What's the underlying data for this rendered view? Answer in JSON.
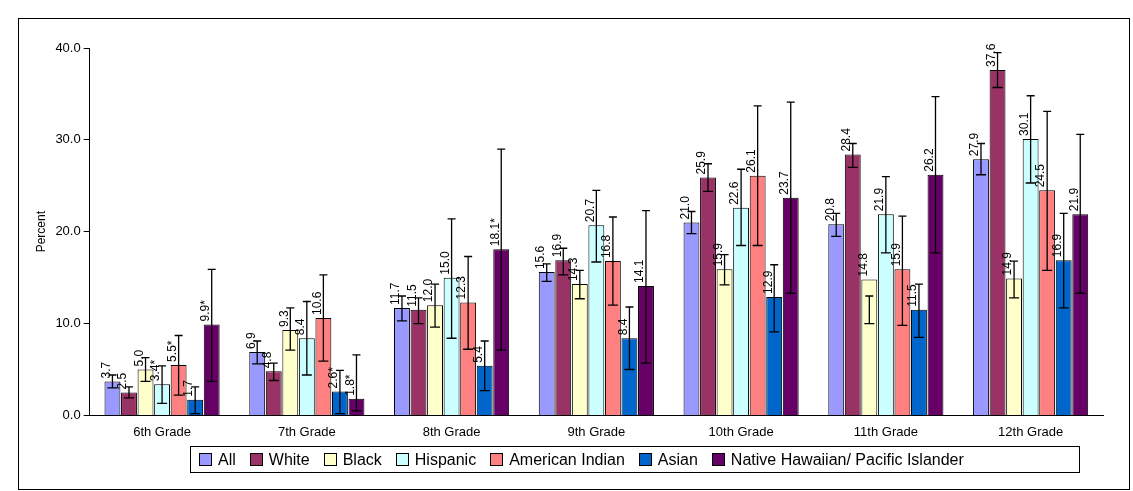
{
  "chart_data": {
    "type": "bar",
    "ylabel": "Percent",
    "categories": [
      "6th Grade",
      "7th Grade",
      "8th Grade",
      "9th Grade",
      "10th Grade",
      "11th Grade",
      "12th Grade"
    ],
    "ylim": [
      0,
      40
    ],
    "yticks": [
      {
        "value": 0,
        "label": "0.0"
      },
      {
        "value": 10,
        "label": "10.0"
      },
      {
        "value": 20,
        "label": "20.0"
      },
      {
        "value": 30,
        "label": "30.0"
      },
      {
        "value": 40,
        "label": "40.0"
      }
    ],
    "grid": false,
    "legend": "bottom",
    "data_labels": true,
    "series": [
      {
        "name": "All",
        "color": "#9999ff",
        "values": [
          3.7,
          6.9,
          11.7,
          15.6,
          21.0,
          20.8,
          27.9
        ],
        "errors": [
          [
            3.0,
            4.4
          ],
          [
            5.6,
            8.1
          ],
          [
            10.3,
            13.0
          ],
          [
            14.6,
            16.5
          ],
          [
            19.8,
            22.2
          ],
          [
            19.5,
            22.0
          ],
          [
            26.2,
            29.6
          ]
        ],
        "value_labels": [
          "3.7",
          "6.9",
          "11.7",
          "15.6",
          "21.0",
          "20.8",
          "27.9"
        ]
      },
      {
        "name": "White",
        "color": "#993366",
        "values": [
          2.5,
          4.8,
          11.5,
          16.9,
          25.9,
          28.4,
          37.6
        ],
        "errors": [
          [
            1.9,
            3.1
          ],
          [
            3.8,
            5.7
          ],
          [
            10.0,
            12.8
          ],
          [
            15.3,
            18.2
          ],
          [
            24.4,
            27.4
          ],
          [
            27.0,
            29.6
          ],
          [
            35.7,
            39.5
          ]
        ],
        "value_labels": [
          "2.5",
          "4.8",
          "11.5",
          "16.9",
          "25.9",
          "28.4",
          "37.6"
        ]
      },
      {
        "name": "Black",
        "color": "#ffffcc",
        "values": [
          5.0,
          9.3,
          12.0,
          14.3,
          15.9,
          14.8,
          14.9
        ],
        "errors": [
          [
            3.7,
            6.3
          ],
          [
            7.1,
            11.7
          ],
          [
            9.6,
            14.3
          ],
          [
            12.7,
            15.8
          ],
          [
            14.2,
            17.5
          ],
          [
            10.0,
            13.0
          ],
          [
            12.8,
            16.8
          ]
        ],
        "value_labels": [
          "5.0",
          "9.3",
          "12.0",
          "14.3",
          "15.9",
          "14.8",
          "14.9"
        ]
      },
      {
        "name": "Hispanic",
        "color": "#ccffff",
        "values": [
          3.4,
          8.4,
          15.0,
          20.7,
          22.6,
          21.9,
          30.1
        ],
        "errors": [
          [
            1.3,
            5.4
          ],
          [
            4.4,
            12.4
          ],
          [
            8.4,
            21.4
          ],
          [
            16.7,
            24.5
          ],
          [
            18.5,
            26.8
          ],
          [
            17.7,
            26.0
          ],
          [
            25.3,
            34.8
          ]
        ],
        "value_labels": [
          "3.4*",
          "8.4",
          "15.0",
          "20.7",
          "22.6",
          "21.9",
          "30.1"
        ]
      },
      {
        "name": "American Indian",
        "color": "#ff8080",
        "values": [
          5.5,
          10.6,
          12.3,
          16.8,
          26.1,
          15.9,
          24.5
        ],
        "errors": [
          [
            2.2,
            8.7
          ],
          [
            5.9,
            15.3
          ],
          [
            7.2,
            17.3
          ],
          [
            12.0,
            21.6
          ],
          [
            18.5,
            33.7
          ],
          [
            9.8,
            21.7
          ],
          [
            15.8,
            33.1
          ]
        ],
        "value_labels": [
          "5.5*",
          "10.6",
          "12.3",
          "16.8",
          "26.1",
          "15.9",
          "24.5"
        ]
      },
      {
        "name": "Asian",
        "color": "#0066cc",
        "values": [
          1.7,
          2.6,
          5.4,
          8.4,
          12.9,
          11.5,
          16.9
        ],
        "errors": [
          [
            0.2,
            3.1
          ],
          [
            0.2,
            4.9
          ],
          [
            2.7,
            8.1
          ],
          [
            5.0,
            11.8
          ],
          [
            9.1,
            16.4
          ],
          [
            8.5,
            14.3
          ],
          [
            11.7,
            22.0
          ]
        ],
        "value_labels": [
          "1.7",
          "2.6*",
          "5.4",
          "8.4",
          "12.9",
          "11.5",
          "16.9"
        ]
      },
      {
        "name": "Native Hawaiian/ Pacific Islander",
        "color": "#660066",
        "values": [
          9.9,
          1.8,
          18.1,
          14.1,
          23.7,
          26.2,
          21.9
        ],
        "errors": [
          [
            3.7,
            15.9
          ],
          [
            0.5,
            6.6
          ],
          [
            7.1,
            29.0
          ],
          [
            5.7,
            22.3
          ],
          [
            13.3,
            34.1
          ],
          [
            17.7,
            34.7
          ],
          [
            13.3,
            30.6
          ]
        ],
        "value_labels": [
          "9.9*",
          "1.8*",
          "18.1*",
          "14.1",
          "23.7",
          "26.2",
          "21.9"
        ]
      }
    ]
  }
}
